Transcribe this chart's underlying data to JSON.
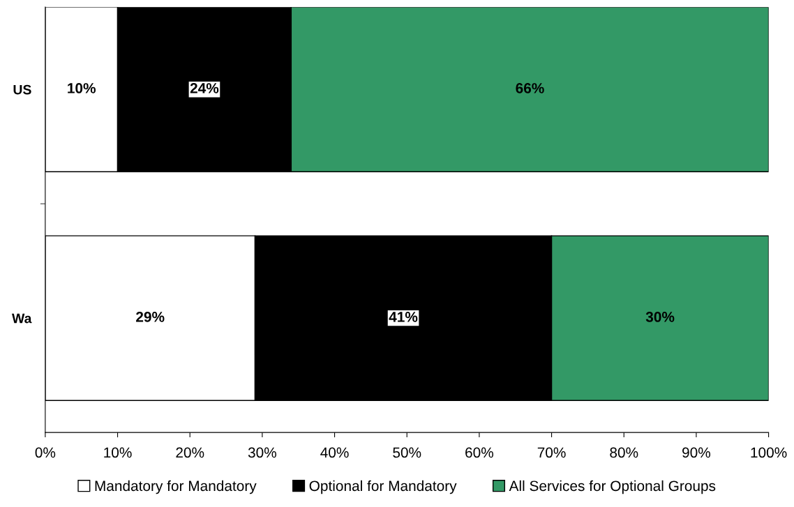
{
  "chart_data": {
    "type": "bar",
    "orientation": "horizontal",
    "stacked": true,
    "categories": [
      "US",
      "Wa"
    ],
    "series": [
      {
        "name": "Mandatory for Mandatory",
        "color": "#ffffff",
        "values": [
          10,
          29
        ],
        "value_labels": [
          "10%",
          "29%"
        ]
      },
      {
        "name": "Optional for Mandatory",
        "color": "#000000",
        "values": [
          24,
          41
        ],
        "value_labels": [
          "24%",
          "41%"
        ]
      },
      {
        "name": "All Services for Optional Groups",
        "color": "#339966",
        "values": [
          66,
          30
        ],
        "value_labels": [
          "66%",
          "30%"
        ]
      }
    ],
    "xlim": [
      0,
      100
    ],
    "xticks": [
      {
        "value": 0,
        "label": "0%"
      },
      {
        "value": 10,
        "label": "10%"
      },
      {
        "value": 20,
        "label": "20%"
      },
      {
        "value": 30,
        "label": "30%"
      },
      {
        "value": 40,
        "label": "40%"
      },
      {
        "value": 50,
        "label": "50%"
      },
      {
        "value": 60,
        "label": "60%"
      },
      {
        "value": 70,
        "label": "70%"
      },
      {
        "value": 80,
        "label": "80%"
      },
      {
        "value": 90,
        "label": "90%"
      },
      {
        "value": 100,
        "label": "100%"
      }
    ],
    "grid": false,
    "legend": "bottom"
  }
}
